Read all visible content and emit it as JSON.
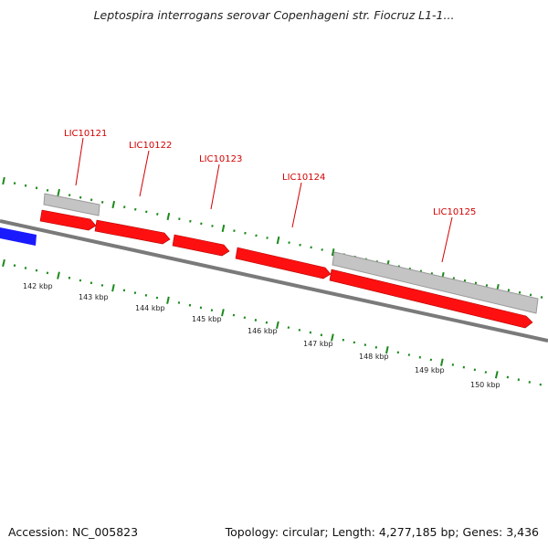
{
  "title": "Leptospira interrogans serovar Copenhageni str. Fiocruz L1-1...",
  "footer": {
    "accession": "Accession: NC_005823",
    "summary": "Topology: circular; Length: 4,277,185 bp; Genes: 3,436"
  },
  "colors": {
    "forward_gene": "#ff1010",
    "reverse_gene": "#1a1aff",
    "other_feature": "#c4c4c4",
    "backbone": "#7a7a7a",
    "tick": "#1c8a1c",
    "label": "#d40000"
  },
  "kbp_labels": [
    "142 kbp",
    "143 kbp",
    "144 kbp",
    "145 kbp",
    "146 kbp",
    "147 kbp",
    "148 kbp",
    "149 kbp",
    "150 kbp"
  ],
  "gene_labels": [
    "LIC10121",
    "LIC10122",
    "LIC10123",
    "LIC10124",
    "LIC10125"
  ]
}
